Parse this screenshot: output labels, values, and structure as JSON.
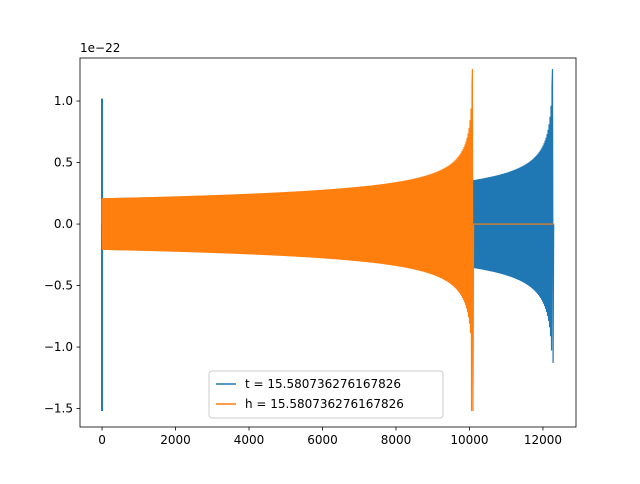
{
  "chart_data": {
    "type": "line",
    "title": "",
    "xlabel": "",
    "ylabel": "",
    "y_offset_label": "1e−22",
    "xlim": [
      -600,
      12900
    ],
    "ylim": [
      -1.65,
      1.35
    ],
    "x_ticks": [
      0,
      2000,
      4000,
      6000,
      8000,
      10000,
      12000
    ],
    "x_tick_labels": [
      "0",
      "2000",
      "4000",
      "6000",
      "8000",
      "10000",
      "12000"
    ],
    "y_ticks": [
      -1.5,
      -1.0,
      -0.5,
      0.0,
      0.5,
      1.0
    ],
    "y_tick_labels": [
      "−1.5",
      "−1.0",
      "−0.5",
      "0.0",
      "0.5",
      "1.0"
    ],
    "grid": false,
    "legend_position": "lower-center",
    "series": [
      {
        "name": "t = 15.580736276167826",
        "color": "#1f77b4",
        "x_start": 0,
        "x_end": 12300,
        "x_merger": 12260,
        "peak_envelope_start": 0.21,
        "peak_envelope_merger": 1.26,
        "initial_spike": {
          "x": 0,
          "min": -1.52,
          "max": 1.02
        },
        "post_merger_value": 0.0
      },
      {
        "name": "h = 15.580736276167826",
        "color": "#ff7f0e",
        "x_start": 0,
        "x_end": 12300,
        "x_merger": 10080,
        "peak_envelope_start": 0.21,
        "peak_envelope_merger": 1.26,
        "trough_at_merger": -1.52,
        "post_merger_value": 0.0
      }
    ]
  }
}
